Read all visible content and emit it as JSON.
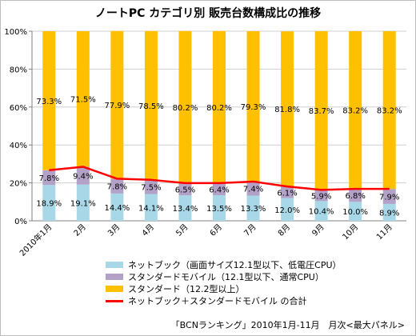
{
  "chart_data": {
    "type": "bar",
    "stacked": true,
    "title": "ノートPC カテゴリ別 販売台数構成比の推移",
    "categories": [
      "2010年1月",
      "2月",
      "3月",
      "4月",
      "5月",
      "6月",
      "7月",
      "8月",
      "9月",
      "10月",
      "11月"
    ],
    "y_ticks": [
      "0%",
      "20%",
      "40%",
      "60%",
      "80%",
      "100%"
    ],
    "ylim": [
      0,
      100
    ],
    "grid": true,
    "legend_position": "bottom",
    "series": [
      {
        "name": "ネットブック（画面サイズ12.1型以下、低電圧CPU）",
        "color": "#a8d8e8",
        "values": [
          18.9,
          19.1,
          14.4,
          14.1,
          13.4,
          13.5,
          13.3,
          12.0,
          10.4,
          10.0,
          8.9
        ],
        "labels": [
          "18.9%",
          "19.1%",
          "14.4%",
          "14.1%",
          "13.4%",
          "13.5%",
          "13.3%",
          "12.0%",
          "10.4%",
          "10.0%",
          "8.9%"
        ]
      },
      {
        "name": "スタンダードモバイル（12.1型以下、通常CPU）",
        "color": "#b3a2c7",
        "values": [
          7.8,
          9.4,
          7.8,
          7.5,
          6.5,
          6.4,
          7.4,
          6.1,
          5.9,
          6.8,
          7.9
        ],
        "labels": [
          "7.8%",
          "9.4%",
          "7.8%",
          "7.5%",
          "6.5%",
          "6.4%",
          "7.4%",
          "6.1%",
          "5.9%",
          "6.8%",
          "7.9%"
        ]
      },
      {
        "name": "スタンダード（12.2型以上）",
        "color": "#ffc000",
        "values": [
          73.3,
          71.5,
          77.9,
          78.5,
          80.2,
          80.2,
          79.3,
          81.8,
          83.7,
          83.2,
          83.2
        ],
        "labels": [
          "73.3%",
          "71.5%",
          "77.9%",
          "78.5%",
          "80.2%",
          "80.2%",
          "79.3%",
          "81.8%",
          "83.7%",
          "83.2%",
          "83.2%"
        ]
      }
    ],
    "total_line": {
      "name": "ネットブック＋スタンダードモバイル の合計",
      "color": "#ff0000",
      "values": [
        26.7,
        28.5,
        22.2,
        21.6,
        19.9,
        19.9,
        20.7,
        18.1,
        16.3,
        16.8,
        16.8
      ]
    }
  },
  "source_note": "「BCNランキング」2010年1月-11月　月次<最大パネル>"
}
